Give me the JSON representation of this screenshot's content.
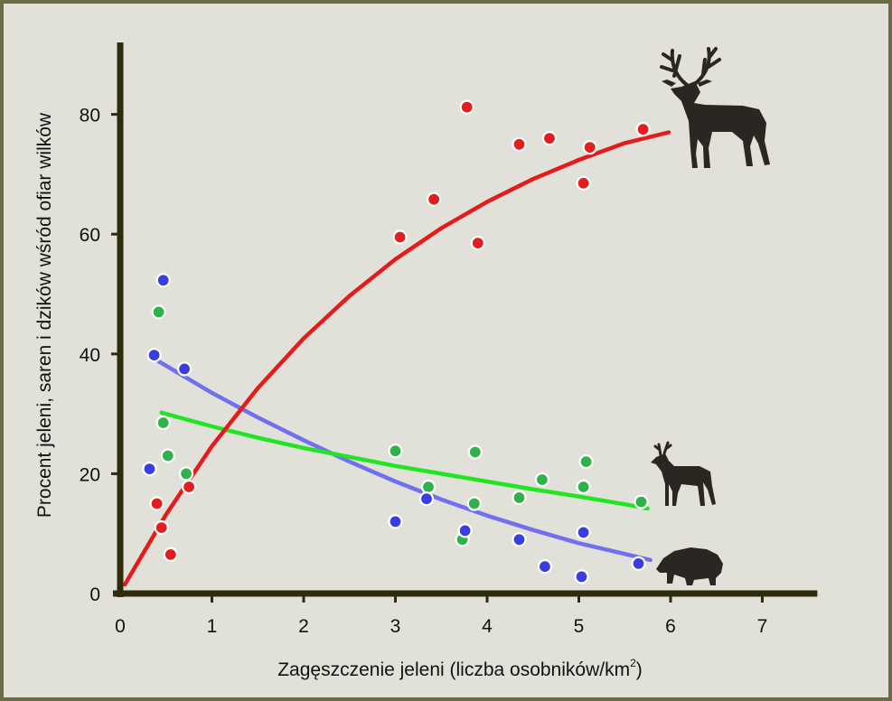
{
  "chart_data": {
    "type": "scatter",
    "title": "",
    "xlabel": "Zagęszczenie jeleni (liczba osobników/km",
    "xlabel_sup": "2",
    "xlabel_end": ")",
    "ylabel": "Procent jeleni, saren i dzików wśród ofiar wilków",
    "xlim": [
      0,
      7.6
    ],
    "ylim": [
      0,
      92
    ],
    "xticks": [
      "0",
      "1",
      "2",
      "3",
      "4",
      "5",
      "6",
      "7"
    ],
    "yticks": [
      "0",
      "20",
      "40",
      "60",
      "80"
    ],
    "grid": false,
    "legend": "none",
    "colors": {
      "red_deer": "#e41e1e",
      "roe_deer": "#2fb24a",
      "wild_boar": "#3a3ee0",
      "red_trend": "#e51b1b",
      "green_trend": "#22e522",
      "blue_trend": "#7070ef",
      "axis": "#2e2c0c",
      "silhouette": "#2a2622"
    },
    "icons": [
      "red-deer-silhouette-icon",
      "roe-deer-silhouette-icon",
      "wild-boar-silhouette-icon"
    ],
    "series": [
      {
        "key": "red_deer",
        "points": [
          [
            0.4,
            15
          ],
          [
            0.45,
            11
          ],
          [
            0.55,
            6.5
          ],
          [
            0.75,
            17.8
          ],
          [
            3.05,
            59.5
          ],
          [
            3.42,
            65.8
          ],
          [
            3.78,
            81.2
          ],
          [
            3.9,
            58.5
          ],
          [
            4.35,
            75
          ],
          [
            4.68,
            76
          ],
          [
            5.05,
            68.5
          ],
          [
            5.12,
            74.5
          ],
          [
            5.7,
            77.5
          ]
        ],
        "trend": [
          [
            0.05,
            1.5
          ],
          [
            0.5,
            13.2
          ],
          [
            1,
            24.6
          ],
          [
            1.5,
            34.3
          ],
          [
            2,
            42.6
          ],
          [
            2.5,
            49.7
          ],
          [
            3,
            55.8
          ],
          [
            3.5,
            61
          ],
          [
            4,
            65.4
          ],
          [
            4.5,
            69.2
          ],
          [
            5,
            72.4
          ],
          [
            5.5,
            75.2
          ],
          [
            5.98,
            77
          ]
        ]
      },
      {
        "key": "roe_deer",
        "points": [
          [
            0.42,
            47
          ],
          [
            0.47,
            28.5
          ],
          [
            0.52,
            23
          ],
          [
            0.72,
            20
          ],
          [
            3.0,
            23.8
          ],
          [
            3.36,
            17.8
          ],
          [
            3.73,
            9
          ],
          [
            3.86,
            15
          ],
          [
            3.87,
            23.6
          ],
          [
            4.35,
            16
          ],
          [
            4.6,
            19
          ],
          [
            5.05,
            17.8
          ],
          [
            5.08,
            22
          ],
          [
            5.68,
            15.3
          ]
        ],
        "trend": [
          [
            0.45,
            30.2
          ],
          [
            1,
            27.9
          ],
          [
            1.5,
            26
          ],
          [
            2,
            24.3
          ],
          [
            2.5,
            22.8
          ],
          [
            3,
            21.3
          ],
          [
            3.5,
            20
          ],
          [
            4,
            18.7
          ],
          [
            4.5,
            17.4
          ],
          [
            5,
            16.2
          ],
          [
            5.5,
            14.9
          ],
          [
            5.75,
            14.2
          ]
        ]
      },
      {
        "key": "wild_boar",
        "points": [
          [
            0.32,
            20.8
          ],
          [
            0.37,
            39.8
          ],
          [
            0.47,
            52.3
          ],
          [
            0.7,
            37.5
          ],
          [
            3.0,
            12
          ],
          [
            3.34,
            15.8
          ],
          [
            3.76,
            10.5
          ],
          [
            4.35,
            9
          ],
          [
            4.63,
            4.5
          ],
          [
            5.03,
            2.8
          ],
          [
            5.05,
            10.2
          ],
          [
            5.65,
            5
          ]
        ],
        "trend": [
          [
            0.37,
            39.2
          ],
          [
            1,
            33.5
          ],
          [
            1.5,
            29.4
          ],
          [
            2,
            25.6
          ],
          [
            2.5,
            22
          ],
          [
            3,
            18.7
          ],
          [
            3.5,
            15.7
          ],
          [
            4,
            13
          ],
          [
            4.5,
            10.6
          ],
          [
            5,
            8.4
          ],
          [
            5.5,
            6.6
          ],
          [
            5.78,
            5.6
          ]
        ]
      }
    ]
  }
}
